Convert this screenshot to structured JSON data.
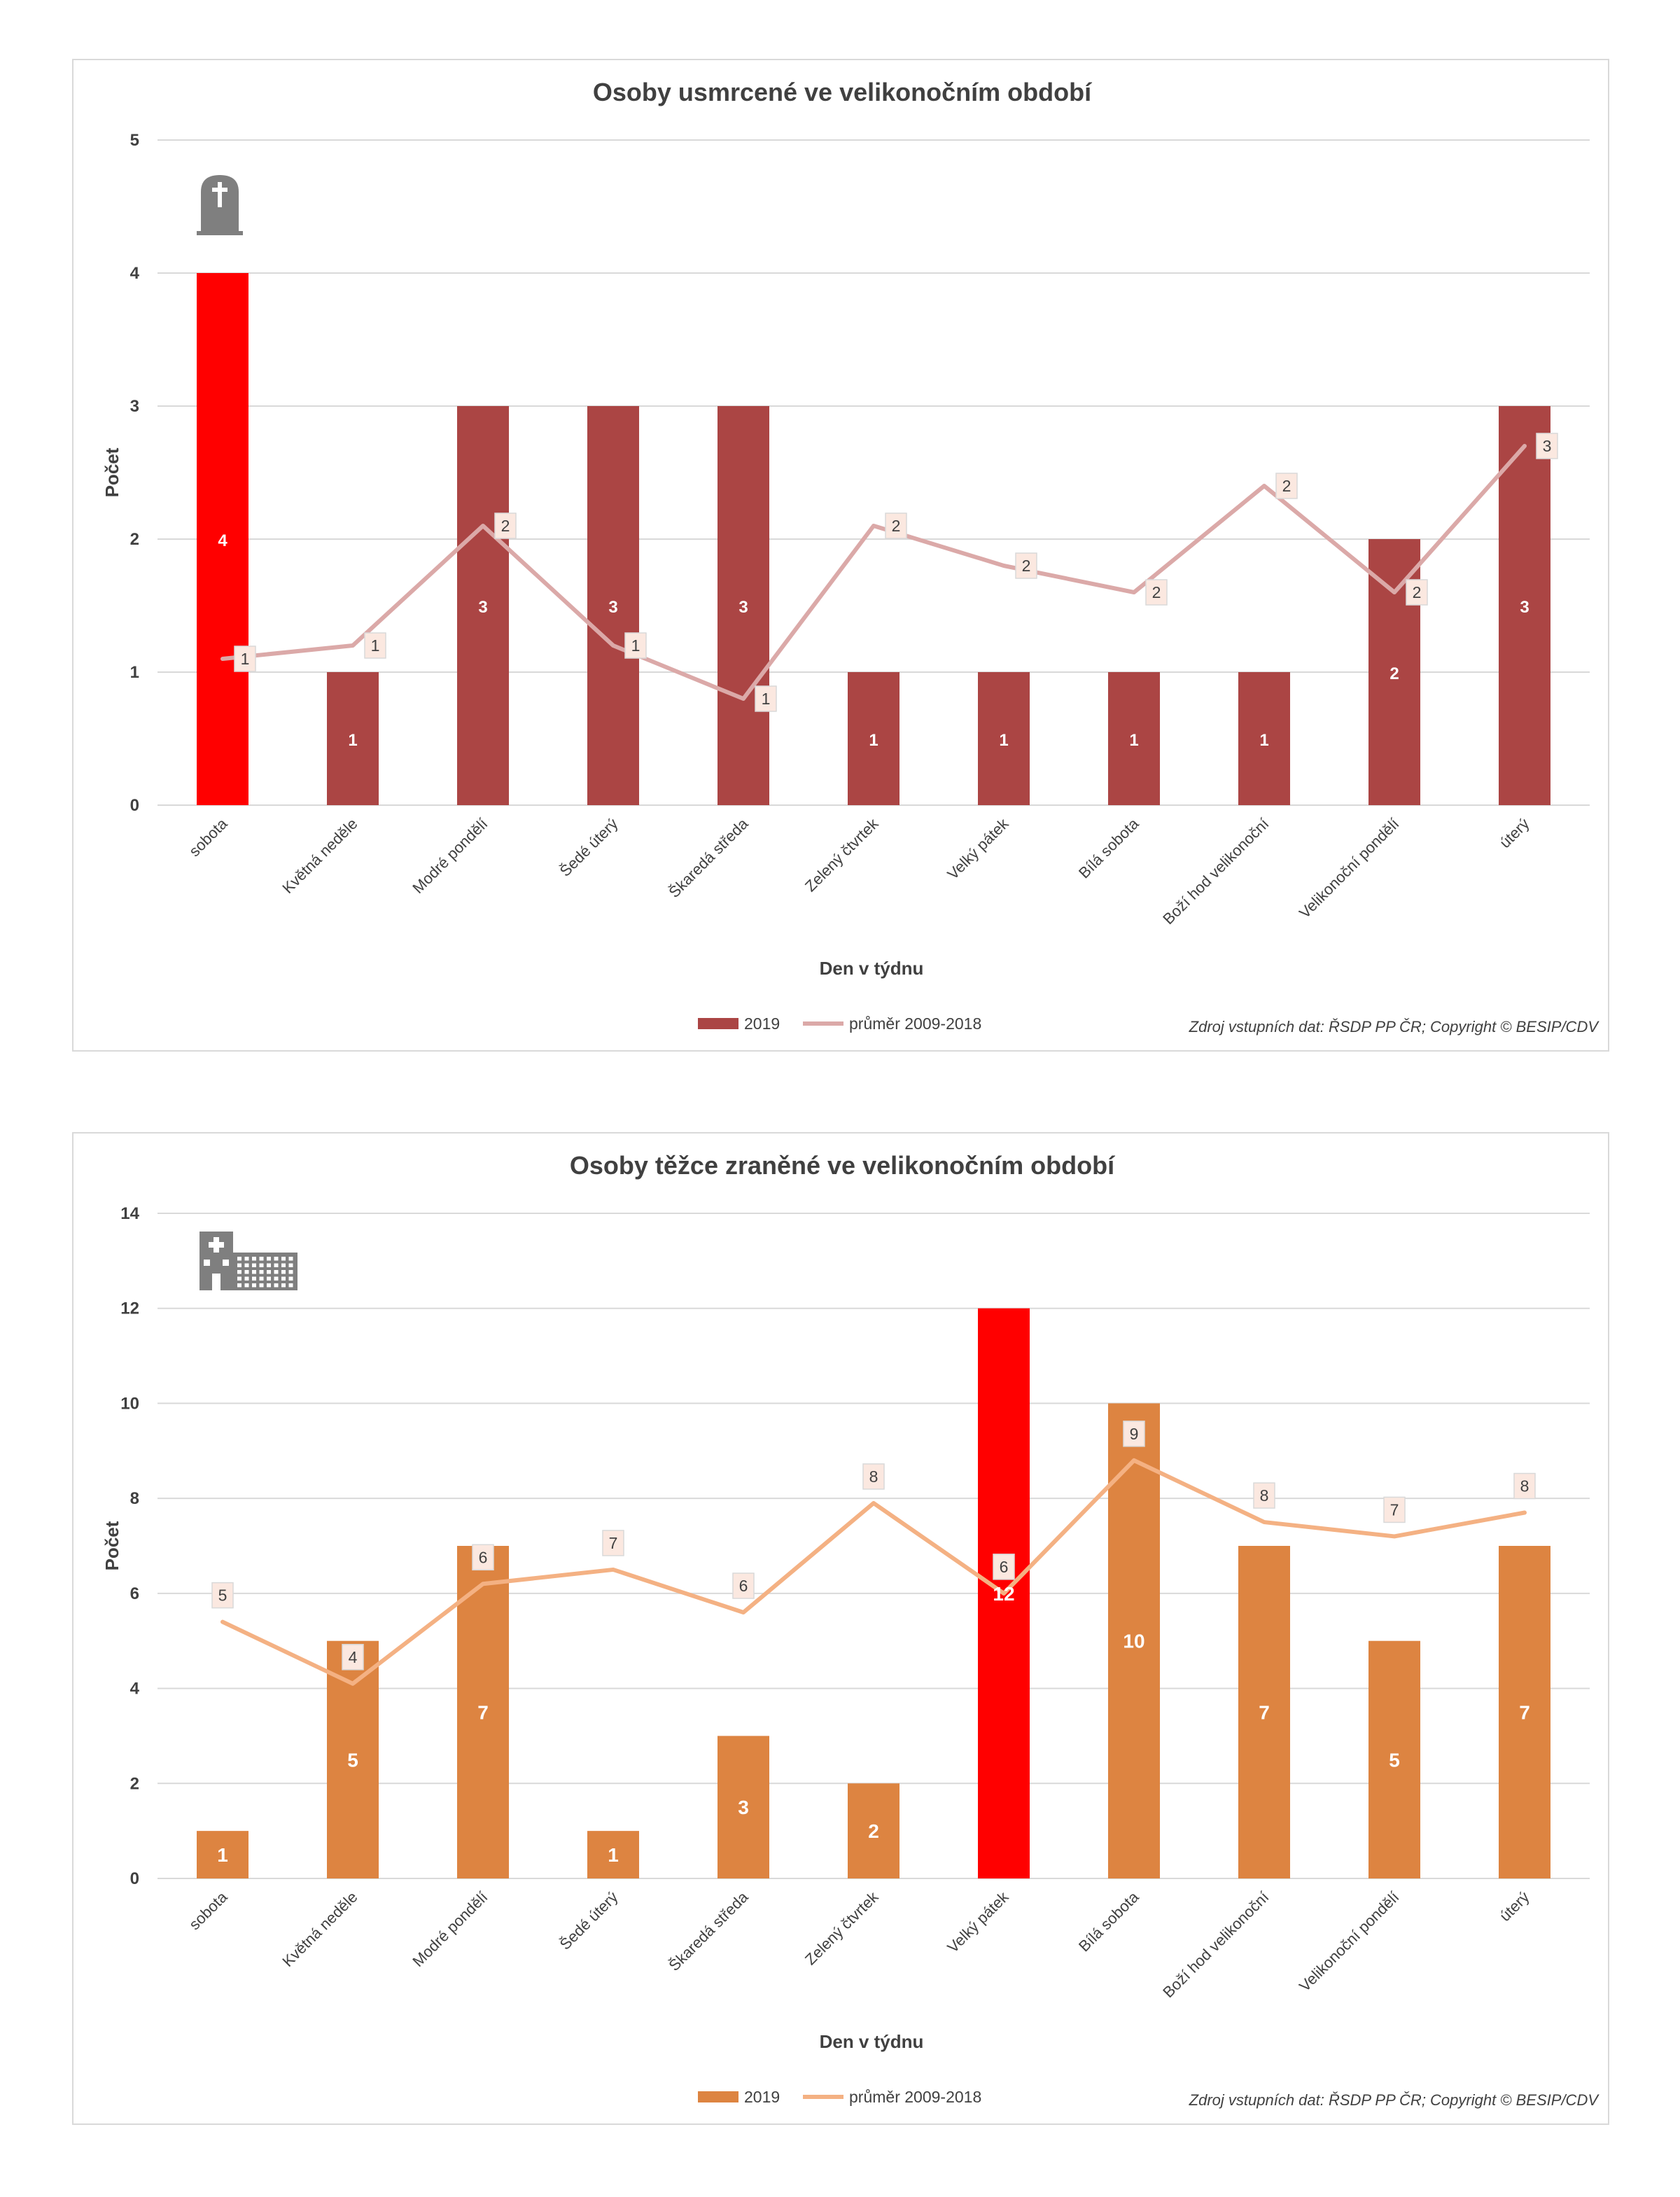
{
  "chart_data": [
    {
      "type": "bar",
      "title": "Osoby usmrcené ve velikonočním období",
      "xlabel": "Den v týdnu",
      "ylabel": "Počet",
      "ylim": [
        0,
        5
      ],
      "yticks": [
        0,
        1,
        2,
        3,
        4,
        5
      ],
      "icon": "gravestone-icon",
      "categories": [
        "sobota",
        "Květná neděle",
        "Modré pondělí",
        "Šedé úterý",
        "Škaredá středa",
        "Zelený čtvrtek",
        "Velký pátek",
        "Bílá sobota",
        "Boží hod velikonoční",
        "Velikonoční pondělí",
        "úterý"
      ],
      "series": [
        {
          "name": "2019",
          "kind": "bar",
          "values": [
            4,
            1,
            3,
            3,
            3,
            1,
            1,
            1,
            1,
            2,
            3
          ],
          "labels": [
            "4",
            "1",
            "3",
            "3",
            "3",
            "1",
            "1",
            "1",
            "1",
            "2",
            "3"
          ]
        },
        {
          "name": "průměr 2009-2018",
          "kind": "line",
          "values": [
            1.1,
            1.2,
            2.1,
            1.2,
            0.8,
            2.1,
            1.8,
            1.6,
            2.4,
            1.6,
            2.7
          ],
          "labels": [
            "1",
            "1",
            "2",
            "1",
            "1",
            "2",
            "2",
            "2",
            "2",
            "2",
            "3"
          ]
        }
      ],
      "highlight_index": 0,
      "colors": {
        "bar": "#ab4544",
        "highlight": "#ff0000",
        "line": "#dba9a8",
        "grid": "#d9d9d9"
      },
      "legend_position": "bottom",
      "source": "Zdroj vstupních dat: ŘSDP PP ČR; Copyright © BESIP/CDV"
    },
    {
      "type": "bar",
      "title": "Osoby těžce zraněné ve velikonočním období",
      "xlabel": "Den v týdnu",
      "ylabel": "Počet",
      "ylim": [
        0,
        14
      ],
      "yticks": [
        0,
        2,
        4,
        6,
        8,
        10,
        12,
        14
      ],
      "icon": "hospital-icon",
      "categories": [
        "sobota",
        "Květná neděle",
        "Modré pondělí",
        "Šedé úterý",
        "Škaredá středa",
        "Zelený čtvrtek",
        "Velký pátek",
        "Bílá sobota",
        "Boží hod velikonoční",
        "Velikonoční pondělí",
        "úterý"
      ],
      "series": [
        {
          "name": "2019",
          "kind": "bar",
          "values": [
            1,
            5,
            7,
            1,
            3,
            2,
            12,
            10,
            7,
            5,
            7
          ],
          "labels": [
            "1",
            "5",
            "7",
            "1",
            "3",
            "2",
            "12",
            "10",
            "7",
            "5",
            "7"
          ]
        },
        {
          "name": "průměr 2009-2018",
          "kind": "line",
          "values": [
            5.4,
            4.1,
            6.2,
            6.5,
            5.6,
            7.9,
            6.0,
            8.8,
            7.5,
            7.2,
            7.7
          ],
          "labels": [
            "5",
            "4",
            "6",
            "7",
            "6",
            "8",
            "6",
            "9",
            "8",
            "7",
            "8"
          ]
        }
      ],
      "highlight_index": 6,
      "colors": {
        "bar": "#dd8441",
        "highlight": "#ff0000",
        "line": "#f4b183",
        "grid": "#d9d9d9"
      },
      "legend_position": "bottom",
      "source": "Zdroj vstupních dat: ŘSDP PP ČR; Copyright © BESIP/CDV"
    }
  ]
}
